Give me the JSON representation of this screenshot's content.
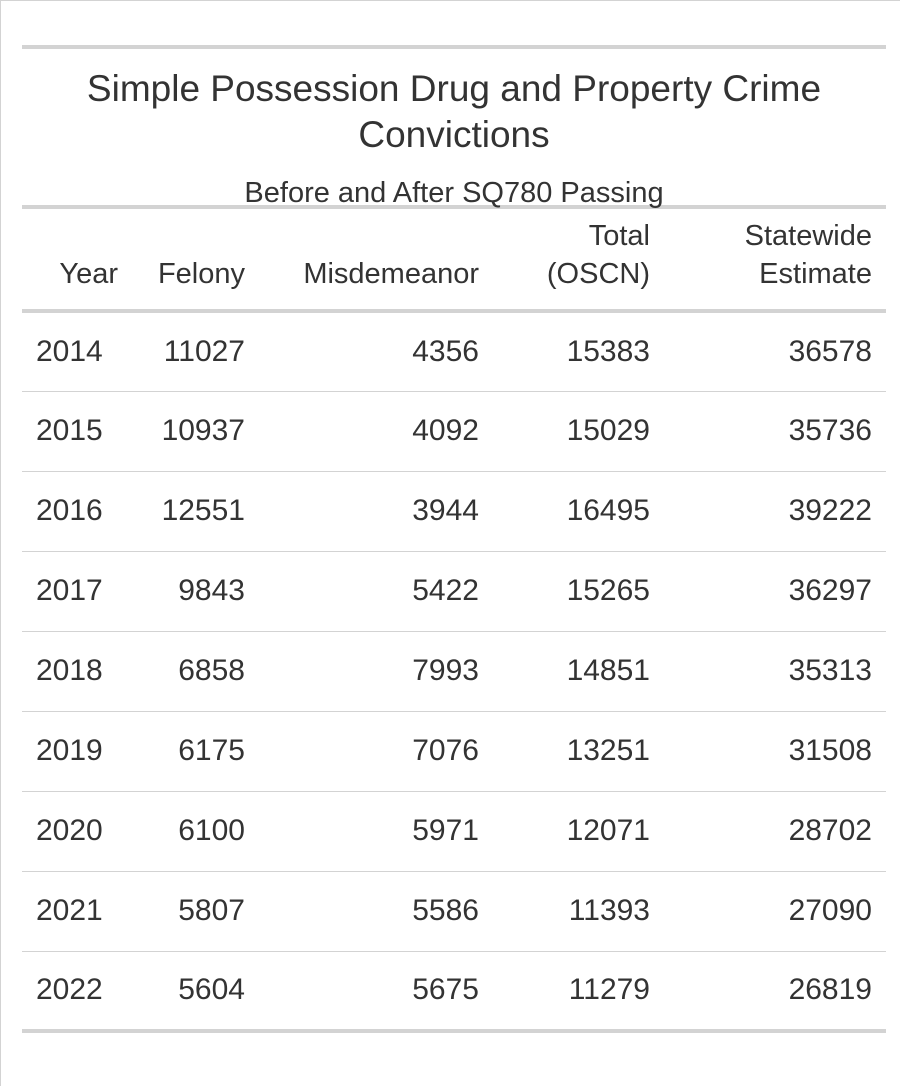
{
  "chart_data": {
    "type": "table",
    "title": "Simple Possession Drug and Property Crime Convictions",
    "subtitle": "Before and After SQ780 Passing",
    "columns": [
      {
        "key": "year",
        "label": "Year"
      },
      {
        "key": "felony",
        "label": "Felony"
      },
      {
        "key": "misdemeanor",
        "label": "Misdemeanor"
      },
      {
        "key": "total",
        "label": "Total (OSCN)"
      },
      {
        "key": "estimate",
        "label": "Statewide Estimate"
      }
    ],
    "rows": [
      {
        "year": "2014",
        "felony": "11027",
        "misdemeanor": "4356",
        "total": "15383",
        "estimate": "36578"
      },
      {
        "year": "2015",
        "felony": "10937",
        "misdemeanor": "4092",
        "total": "15029",
        "estimate": "35736"
      },
      {
        "year": "2016",
        "felony": "12551",
        "misdemeanor": "3944",
        "total": "16495",
        "estimate": "39222"
      },
      {
        "year": "2017",
        "felony": "9843",
        "misdemeanor": "5422",
        "total": "15265",
        "estimate": "36297"
      },
      {
        "year": "2018",
        "felony": "6858",
        "misdemeanor": "7993",
        "total": "14851",
        "estimate": "35313"
      },
      {
        "year": "2019",
        "felony": "6175",
        "misdemeanor": "7076",
        "total": "13251",
        "estimate": "31508"
      },
      {
        "year": "2020",
        "felony": "6100",
        "misdemeanor": "5971",
        "total": "12071",
        "estimate": "28702"
      },
      {
        "year": "2021",
        "felony": "5807",
        "misdemeanor": "5586",
        "total": "11393",
        "estimate": "27090"
      },
      {
        "year": "2022",
        "felony": "5604",
        "misdemeanor": "5675",
        "total": "11279",
        "estimate": "26819"
      }
    ]
  }
}
